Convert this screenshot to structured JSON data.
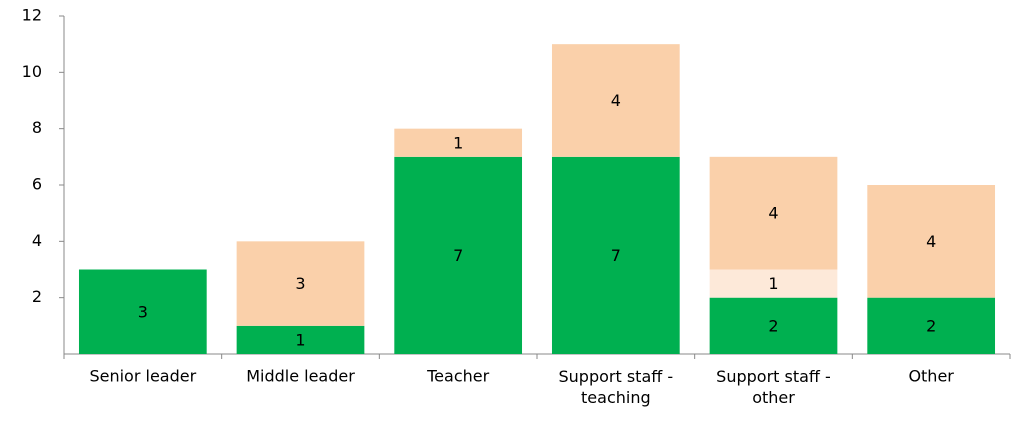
{
  "chart_data": {
    "type": "stacked-bar",
    "categories": [
      "Senior leader",
      "Middle leader",
      "Teacher",
      "Support staff - teaching",
      "Support staff - other",
      "Other"
    ],
    "series": [
      {
        "color": "#00b050",
        "values": [
          3,
          1,
          7,
          7,
          2,
          2
        ]
      },
      {
        "color": "#fde9d9",
        "values": [
          null,
          null,
          null,
          null,
          1,
          null
        ]
      },
      {
        "color": "#fad0aa",
        "values": [
          null,
          3,
          1,
          4,
          4,
          4
        ]
      }
    ],
    "ylim": [
      0,
      12
    ],
    "yticks": [
      2,
      4,
      6,
      8,
      10,
      12
    ],
    "grid": false
  }
}
